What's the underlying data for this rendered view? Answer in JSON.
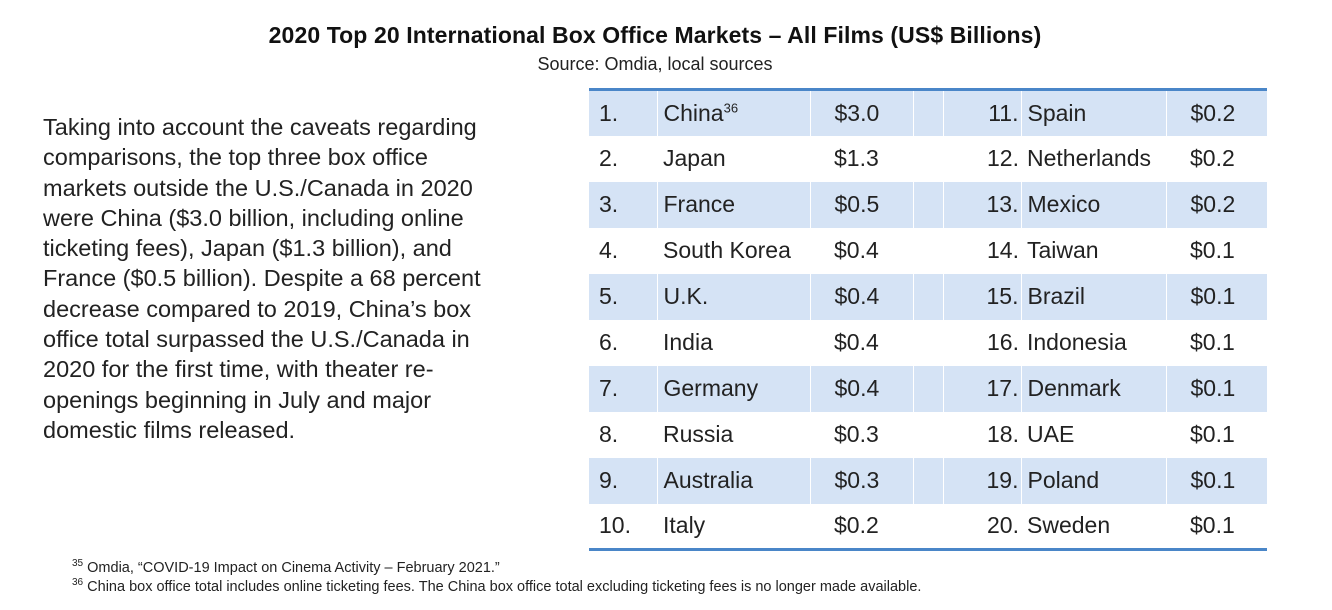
{
  "title": "2020 Top 20 International Box Office Markets – All Films (US$ Billions)",
  "source": "Source: Omdia, local sources",
  "body_text": "Taking into account the caveats regarding comparisons, the top three box office markets outside the U.S./Canada in 2020 were China ($3.0 billion, including online ticketing fees), Japan ($1.3 billion), and France ($0.5 billion). Despite a 68 percent decrease compared to 2019, China’s box office total surpassed the U.S./Canada in 2020 for the first time, with theater re-openings beginning in July and major domestic films released.",
  "rows": [
    {
      "rank_a": "1.",
      "country_a": "China",
      "footnote_a": "36",
      "value_a": "$3.0",
      "rank_b": "11.",
      "country_b": "Spain",
      "value_b": "$0.2"
    },
    {
      "rank_a": "2.",
      "country_a": "Japan",
      "footnote_a": "",
      "value_a": "$1.3",
      "rank_b": "12.",
      "country_b": "Netherlands",
      "value_b": "$0.2"
    },
    {
      "rank_a": "3.",
      "country_a": "France",
      "footnote_a": "",
      "value_a": "$0.5",
      "rank_b": "13.",
      "country_b": "Mexico",
      "value_b": "$0.2"
    },
    {
      "rank_a": "4.",
      "country_a": "South Korea",
      "footnote_a": "",
      "value_a": "$0.4",
      "rank_b": "14.",
      "country_b": "Taiwan",
      "value_b": "$0.1"
    },
    {
      "rank_a": "5.",
      "country_a": "U.K.",
      "footnote_a": "",
      "value_a": "$0.4",
      "rank_b": "15.",
      "country_b": "Brazil",
      "value_b": "$0.1"
    },
    {
      "rank_a": "6.",
      "country_a": "India",
      "footnote_a": "",
      "value_a": "$0.4",
      "rank_b": "16.",
      "country_b": "Indonesia",
      "value_b": "$0.1"
    },
    {
      "rank_a": "7.",
      "country_a": "Germany",
      "footnote_a": "",
      "value_a": "$0.4",
      "rank_b": "17.",
      "country_b": "Denmark",
      "value_b": "$0.1"
    },
    {
      "rank_a": "8.",
      "country_a": "Russia",
      "footnote_a": "",
      "value_a": "$0.3",
      "rank_b": "18.",
      "country_b": "UAE",
      "value_b": "$0.1"
    },
    {
      "rank_a": "9.",
      "country_a": "Australia",
      "footnote_a": "",
      "value_a": "$0.3",
      "rank_b": "19.",
      "country_b": "Poland",
      "value_b": "$0.1"
    },
    {
      "rank_a": "10.",
      "country_a": "Italy",
      "footnote_a": "",
      "value_a": "$0.2",
      "rank_b": "20.",
      "country_b": "Sweden",
      "value_b": "$0.1"
    }
  ],
  "footnotes": [
    {
      "num": "35",
      "text": "Omdia, “COVID-19 Impact on Cinema Activity – February 2021.”"
    },
    {
      "num": "36",
      "text": "China box office total includes online ticketing fees. The China box office total excluding ticketing fees is no longer made available."
    }
  ],
  "colors": {
    "rule": "#4a86c8",
    "row_shade": "#d5e3f5"
  }
}
